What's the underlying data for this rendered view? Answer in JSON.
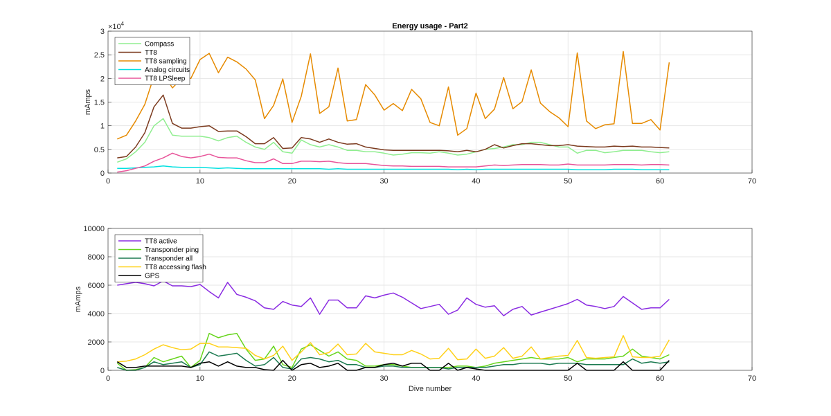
{
  "chart_data": [
    {
      "type": "line",
      "title": "Energy usage - Part2",
      "xlabel": "",
      "ylabel": "mAmps",
      "exponent_label": "×10",
      "exponent_power": "4",
      "xlim": [
        0,
        70
      ],
      "ylim": [
        0,
        30000
      ],
      "xticks": [
        "0",
        "10",
        "20",
        "30",
        "40",
        "50",
        "60",
        "70"
      ],
      "yticks": [
        "0",
        "0.5",
        "1",
        "1.5",
        "2",
        "2.5",
        "3"
      ],
      "grid": true,
      "legend_position": "top-left",
      "x": [
        1,
        2,
        3,
        4,
        5,
        6,
        7,
        8,
        9,
        10,
        11,
        12,
        13,
        14,
        15,
        16,
        17,
        18,
        19,
        20,
        21,
        22,
        23,
        24,
        25,
        26,
        27,
        28,
        29,
        30,
        31,
        32,
        33,
        34,
        35,
        36,
        37,
        38,
        39,
        40,
        41,
        42,
        43,
        44,
        45,
        46,
        47,
        48,
        49,
        50,
        51,
        52,
        53,
        54,
        55,
        56,
        57,
        58,
        59,
        60,
        61
      ],
      "series": [
        {
          "name": "Compass",
          "color": "#90ee90",
          "values": [
            2300,
            3000,
            4500,
            6500,
            10000,
            11500,
            8000,
            7800,
            7800,
            7800,
            7500,
            6800,
            7500,
            7800,
            6500,
            5500,
            5000,
            6500,
            4500,
            4200,
            7000,
            6000,
            5500,
            6000,
            5500,
            4800,
            4800,
            4500,
            4500,
            4200,
            3800,
            4000,
            4300,
            4300,
            4200,
            4500,
            4200,
            3800,
            4000,
            4500,
            5000,
            5200,
            5500,
            6000,
            6000,
            6500,
            6500,
            6000,
            5500,
            5500,
            4200,
            4800,
            4800,
            4300,
            4500,
            4800,
            4800,
            4800,
            4500,
            4300,
            4500
          ]
        },
        {
          "name": "TT8",
          "color": "#7b3a1e",
          "values": [
            3200,
            3500,
            5500,
            8500,
            14000,
            16500,
            10500,
            9500,
            9500,
            9800,
            10000,
            8800,
            8900,
            8900,
            7700,
            6200,
            6200,
            7500,
            5200,
            5300,
            7500,
            7200,
            6500,
            7200,
            6500,
            6100,
            6200,
            5500,
            5200,
            4900,
            4800,
            4800,
            4800,
            4800,
            4800,
            4800,
            4700,
            4500,
            4800,
            4500,
            5000,
            6000,
            5300,
            5800,
            6200,
            6200,
            6000,
            5800,
            5800,
            6000,
            5700,
            5600,
            5500,
            5500,
            5700,
            5600,
            5700,
            5500,
            5500,
            5400,
            5300
          ]
        },
        {
          "name": "TT8 sampling",
          "color": "#e68a00",
          "values": [
            7200,
            8000,
            11000,
            14500,
            20500,
            21000,
            18000,
            20000,
            20000,
            24000,
            25300,
            21200,
            24500,
            23500,
            22000,
            19700,
            11500,
            14300,
            19900,
            10700,
            16200,
            25200,
            12600,
            14000,
            22200,
            11000,
            11300,
            18700,
            16500,
            13300,
            14700,
            13200,
            17700,
            15700,
            10700,
            10000,
            18200,
            8000,
            9400,
            16900,
            11500,
            13500,
            20200,
            13600,
            15100,
            21800,
            14800,
            13000,
            11700,
            9800,
            25400,
            11000,
            9400,
            10200,
            10400,
            25700,
            10500,
            10500,
            11300,
            9100,
            23400
          ]
        },
        {
          "name": "Analog circuits",
          "color": "#00e0e0",
          "values": [
            1000,
            1000,
            1100,
            1200,
            1300,
            1500,
            1300,
            1200,
            1200,
            1200,
            1100,
            1000,
            1100,
            1000,
            900,
            900,
            900,
            900,
            900,
            900,
            900,
            900,
            900,
            800,
            900,
            800,
            800,
            800,
            800,
            800,
            800,
            800,
            800,
            800,
            800,
            800,
            800,
            700,
            800,
            700,
            800,
            800,
            800,
            800,
            800,
            800,
            800,
            800,
            800,
            800,
            700,
            700,
            700,
            700,
            800,
            800,
            800,
            700,
            700,
            700,
            700
          ]
        },
        {
          "name": "TT8 LPSleep",
          "color": "#e8559a",
          "values": [
            200,
            500,
            1000,
            1500,
            2500,
            3200,
            4200,
            3500,
            3200,
            3500,
            4000,
            3300,
            3200,
            3200,
            2600,
            2200,
            2200,
            3000,
            2000,
            2000,
            2500,
            2500,
            2400,
            2500,
            2200,
            2000,
            2000,
            2000,
            1800,
            1600,
            1500,
            1500,
            1400,
            1400,
            1400,
            1400,
            1300,
            1300,
            1300,
            1300,
            1500,
            1700,
            1600,
            1700,
            1800,
            1800,
            1800,
            1700,
            1700,
            1900,
            1700,
            1700,
            1700,
            1700,
            1800,
            1800,
            1800,
            1700,
            1800,
            1800,
            1700
          ]
        }
      ]
    },
    {
      "type": "line",
      "title": "",
      "xlabel": "Dive number",
      "ylabel": "mAmps",
      "xlim": [
        0,
        70
      ],
      "ylim": [
        0,
        10000
      ],
      "xticks": [
        "0",
        "10",
        "20",
        "30",
        "40",
        "50",
        "60",
        "70"
      ],
      "yticks": [
        "0",
        "2000",
        "4000",
        "6000",
        "8000",
        "10000"
      ],
      "grid": true,
      "legend_position": "top-left",
      "x": [
        1,
        2,
        3,
        4,
        5,
        6,
        7,
        8,
        9,
        10,
        11,
        12,
        13,
        14,
        15,
        16,
        17,
        18,
        19,
        20,
        21,
        22,
        23,
        24,
        25,
        26,
        27,
        28,
        29,
        30,
        31,
        32,
        33,
        34,
        35,
        36,
        37,
        38,
        39,
        40,
        41,
        42,
        43,
        44,
        45,
        46,
        47,
        48,
        49,
        50,
        51,
        52,
        53,
        54,
        55,
        56,
        57,
        58,
        59,
        60,
        61
      ],
      "series": [
        {
          "name": "TT8 active",
          "color": "#8a2be2",
          "values": [
            6000,
            6100,
            6200,
            6100,
            5950,
            6300,
            5950,
            5950,
            5900,
            6050,
            5550,
            5100,
            6200,
            5350,
            5150,
            4900,
            4400,
            4300,
            4850,
            4600,
            4500,
            5100,
            3950,
            4950,
            4950,
            4400,
            4400,
            5250,
            5100,
            5300,
            5450,
            5150,
            4750,
            4350,
            4500,
            4650,
            3950,
            4250,
            5100,
            4650,
            4450,
            4550,
            3850,
            4300,
            4500,
            3900,
            4100,
            4300,
            4500,
            4700,
            5000,
            4600,
            4500,
            4350,
            4500,
            5200,
            4750,
            4300,
            4400,
            4400,
            5000
          ]
        },
        {
          "name": "Transponder ping",
          "color": "#66d51c",
          "values": [
            500,
            0,
            50,
            200,
            900,
            600,
            800,
            1000,
            200,
            700,
            2600,
            2300,
            2500,
            2600,
            1500,
            700,
            800,
            1700,
            400,
            200,
            1500,
            1800,
            1400,
            1000,
            1300,
            800,
            700,
            300,
            300,
            400,
            400,
            300,
            200,
            200,
            200,
            200,
            200,
            300,
            300,
            200,
            300,
            500,
            600,
            700,
            800,
            900,
            800,
            800,
            800,
            900,
            600,
            800,
            800,
            800,
            900,
            1000,
            1500,
            1000,
            900,
            800,
            1100
          ]
        },
        {
          "name": "Transponder all",
          "color": "#1b7a50",
          "values": [
            200,
            0,
            0,
            200,
            600,
            400,
            500,
            600,
            200,
            400,
            1300,
            1000,
            1100,
            1200,
            700,
            300,
            400,
            900,
            200,
            100,
            800,
            900,
            800,
            600,
            700,
            400,
            400,
            200,
            200,
            300,
            300,
            200,
            200,
            200,
            200,
            200,
            100,
            200,
            200,
            200,
            200,
            300,
            400,
            400,
            500,
            500,
            500,
            400,
            500,
            500,
            500,
            400,
            400,
            400,
            400,
            400,
            800,
            500,
            600,
            500,
            600
          ]
        },
        {
          "name": "TT8 accessing flash",
          "color": "#ffd11a",
          "values": [
            600,
            650,
            800,
            1100,
            1500,
            1800,
            1600,
            1450,
            1500,
            1900,
            1900,
            1650,
            1650,
            1600,
            1550,
            1050,
            800,
            1050,
            1700,
            700,
            1300,
            1950,
            1100,
            1250,
            1850,
            1100,
            1150,
            1900,
            1300,
            1200,
            1100,
            1100,
            1400,
            1150,
            800,
            850,
            1550,
            750,
            800,
            1500,
            850,
            1000,
            1600,
            850,
            1000,
            1650,
            800,
            900,
            1000,
            1050,
            2100,
            900,
            850,
            900,
            950,
            2450,
            950,
            900,
            900,
            1000,
            2150
          ]
        },
        {
          "name": "GPS",
          "color": "#000000",
          "values": [
            600,
            200,
            200,
            300,
            300,
            300,
            300,
            300,
            200,
            500,
            600,
            300,
            600,
            300,
            200,
            200,
            50,
            0,
            700,
            0,
            400,
            500,
            200,
            300,
            500,
            0,
            0,
            200,
            200,
            400,
            500,
            300,
            500,
            500,
            0,
            0,
            500,
            0,
            200,
            100,
            0,
            0,
            0,
            0,
            0,
            0,
            0,
            0,
            0,
            0,
            500,
            0,
            0,
            0,
            0,
            600,
            0,
            0,
            0,
            0,
            700
          ]
        }
      ]
    }
  ]
}
